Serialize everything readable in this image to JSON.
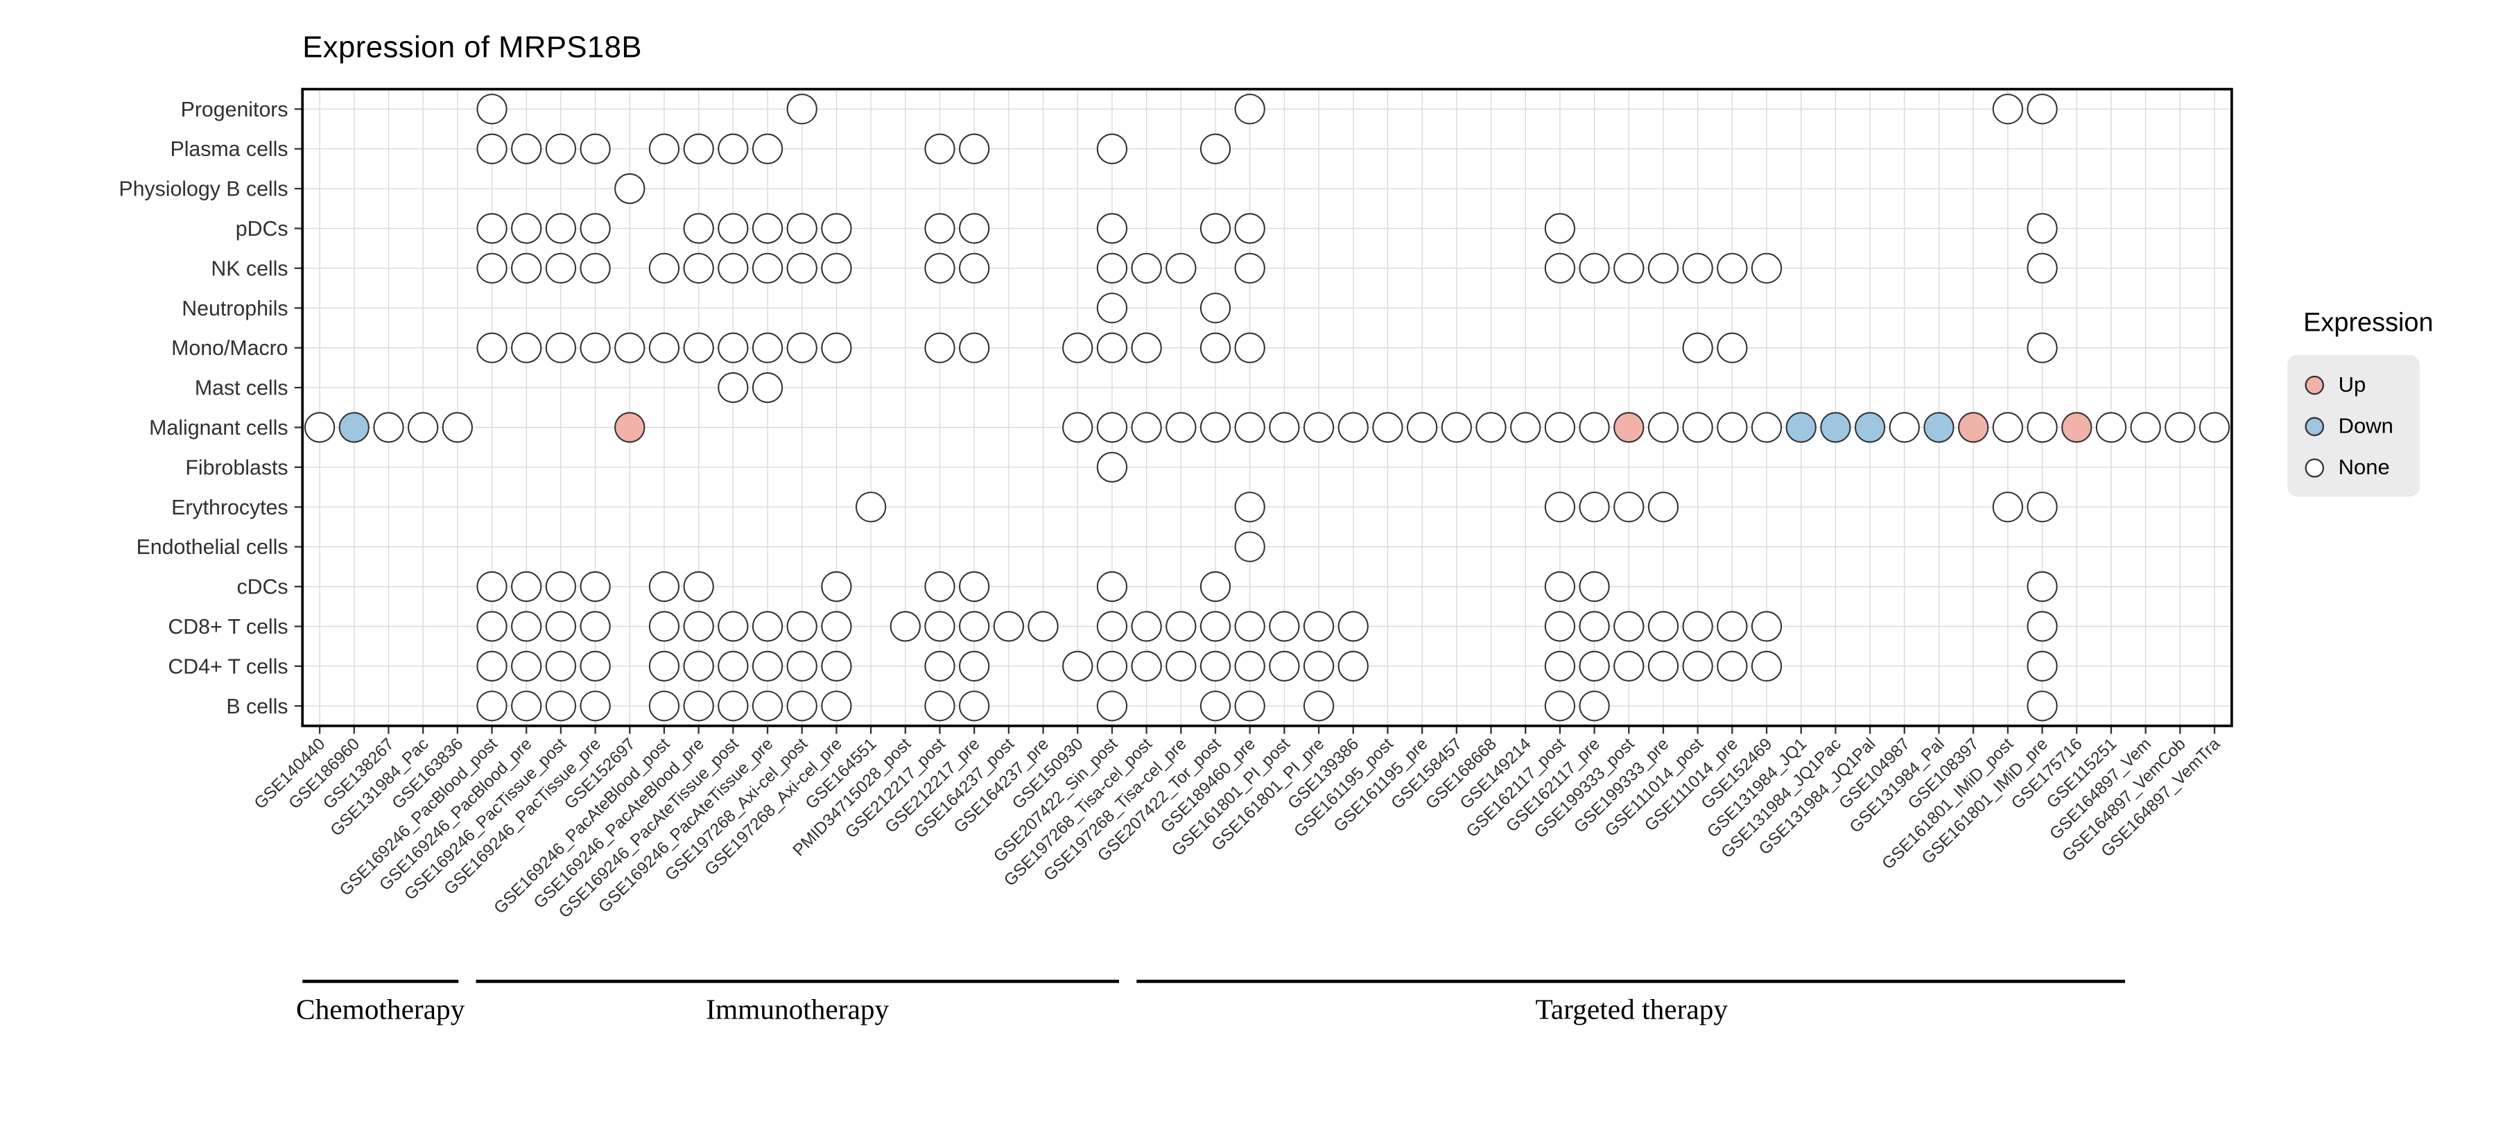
{
  "title": "Expression of MRPS18B",
  "legend": {
    "title": "Expression",
    "items": [
      {
        "label": "Up",
        "status": "u"
      },
      {
        "label": "Down",
        "status": "d"
      },
      {
        "label": "None",
        "status": "n"
      }
    ]
  },
  "chart_data": {
    "type": "heatmap",
    "subtype": "dot-matrix",
    "title": "Expression of MRPS18B",
    "legend_position": "right",
    "grid": true,
    "status_codes": {
      "u": "Up",
      "d": "Down",
      "n": "None"
    },
    "colors": {
      "up": "#F1B2AA",
      "down": "#9FC6E0",
      "none_fill": "#FFFFFF",
      "dot_stroke": "#333333",
      "grid": "#D9D9D9",
      "panel_border": "#000000",
      "tick": "#333333",
      "label": "#303030",
      "legend_box": "#EBEBEB"
    },
    "x_labels": [
      "GSE140440",
      "GSE186960",
      "GSE138267",
      "GSE131984_Pac",
      "GSE163836",
      "GSE169246_PacBlood_post",
      "GSE169246_PacBlood_pre",
      "GSE169246_PacTissue_post",
      "GSE169246_PacTissue_pre",
      "GSE152697",
      "GSE169246_PacAteBlood_post",
      "GSE169246_PacAteBlood_pre",
      "GSE169246_PacAteTissue_post",
      "GSE169246_PacAteTissue_pre",
      "GSE197268_Axi-cel_post",
      "GSE197268_Axi-cel_pre",
      "GSE164551",
      "PMID34715028_post",
      "GSE212217_post",
      "GSE212217_pre",
      "GSE164237_post",
      "GSE164237_pre",
      "GSE150930",
      "GSE207422_Sin_post",
      "GSE197268_Tisa-cel_post",
      "GSE197268_Tisa-cel_pre",
      "GSE207422_Tor_post",
      "GSE189460_pre",
      "GSE161801_PI_post",
      "GSE161801_PI_pre",
      "GSE139386",
      "GSE161195_post",
      "GSE161195_pre",
      "GSE158457",
      "GSE168668",
      "GSE149214",
      "GSE162117_post",
      "GSE162117_pre",
      "GSE199333_post",
      "GSE199333_pre",
      "GSE111014_post",
      "GSE111014_pre",
      "GSE152469",
      "GSE131984_JQ1",
      "GSE131984_JQ1Pac",
      "GSE131984_JQ1Pal",
      "GSE104987",
      "GSE131984_Pal",
      "GSE108397",
      "GSE161801_IMiD_post",
      "GSE161801_IMiD_pre",
      "GSE175716",
      "GSE115251",
      "GSE164897_Vem",
      "GSE164897_VemCob",
      "GSE164897_VemTra"
    ],
    "rows": [
      {
        "label": "Progenitors",
        "dots": [
          [
            5,
            "n"
          ],
          [
            14,
            "n"
          ],
          [
            27,
            "n"
          ],
          [
            49,
            "n"
          ],
          [
            50,
            "n"
          ]
        ]
      },
      {
        "label": "Plasma cells",
        "dots": [
          [
            5,
            "n"
          ],
          [
            6,
            "n"
          ],
          [
            7,
            "n"
          ],
          [
            8,
            "n"
          ],
          [
            10,
            "n"
          ],
          [
            11,
            "n"
          ],
          [
            12,
            "n"
          ],
          [
            13,
            "n"
          ],
          [
            18,
            "n"
          ],
          [
            19,
            "n"
          ],
          [
            23,
            "n"
          ],
          [
            26,
            "n"
          ]
        ]
      },
      {
        "label": "Physiology B cells",
        "dots": [
          [
            9,
            "n"
          ]
        ]
      },
      {
        "label": "pDCs",
        "dots": [
          [
            5,
            "n"
          ],
          [
            6,
            "n"
          ],
          [
            7,
            "n"
          ],
          [
            8,
            "n"
          ],
          [
            11,
            "n"
          ],
          [
            12,
            "n"
          ],
          [
            13,
            "n"
          ],
          [
            14,
            "n"
          ],
          [
            15,
            "n"
          ],
          [
            18,
            "n"
          ],
          [
            19,
            "n"
          ],
          [
            23,
            "n"
          ],
          [
            26,
            "n"
          ],
          [
            27,
            "n"
          ],
          [
            36,
            "n"
          ],
          [
            50,
            "n"
          ]
        ]
      },
      {
        "label": "NK cells",
        "dots": [
          [
            5,
            "n"
          ],
          [
            6,
            "n"
          ],
          [
            7,
            "n"
          ],
          [
            8,
            "n"
          ],
          [
            10,
            "n"
          ],
          [
            11,
            "n"
          ],
          [
            12,
            "n"
          ],
          [
            13,
            "n"
          ],
          [
            14,
            "n"
          ],
          [
            15,
            "n"
          ],
          [
            18,
            "n"
          ],
          [
            19,
            "n"
          ],
          [
            23,
            "n"
          ],
          [
            24,
            "n"
          ],
          [
            25,
            "n"
          ],
          [
            27,
            "n"
          ],
          [
            36,
            "n"
          ],
          [
            37,
            "n"
          ],
          [
            38,
            "n"
          ],
          [
            39,
            "n"
          ],
          [
            40,
            "n"
          ],
          [
            41,
            "n"
          ],
          [
            42,
            "n"
          ],
          [
            50,
            "n"
          ]
        ]
      },
      {
        "label": "Neutrophils",
        "dots": [
          [
            23,
            "n"
          ],
          [
            26,
            "n"
          ]
        ]
      },
      {
        "label": "Mono/Macro",
        "dots": [
          [
            5,
            "n"
          ],
          [
            6,
            "n"
          ],
          [
            7,
            "n"
          ],
          [
            8,
            "n"
          ],
          [
            9,
            "n"
          ],
          [
            10,
            "n"
          ],
          [
            11,
            "n"
          ],
          [
            12,
            "n"
          ],
          [
            13,
            "n"
          ],
          [
            14,
            "n"
          ],
          [
            15,
            "n"
          ],
          [
            18,
            "n"
          ],
          [
            19,
            "n"
          ],
          [
            22,
            "n"
          ],
          [
            23,
            "n"
          ],
          [
            24,
            "n"
          ],
          [
            26,
            "n"
          ],
          [
            27,
            "n"
          ],
          [
            40,
            "n"
          ],
          [
            41,
            "n"
          ],
          [
            50,
            "n"
          ]
        ]
      },
      {
        "label": "Mast cells",
        "dots": [
          [
            12,
            "n"
          ],
          [
            13,
            "n"
          ]
        ]
      },
      {
        "label": "Malignant cells",
        "dots": [
          [
            0,
            "n"
          ],
          [
            1,
            "d"
          ],
          [
            2,
            "n"
          ],
          [
            3,
            "n"
          ],
          [
            4,
            "n"
          ],
          [
            9,
            "u"
          ],
          [
            22,
            "n"
          ],
          [
            23,
            "n"
          ],
          [
            24,
            "n"
          ],
          [
            25,
            "n"
          ],
          [
            26,
            "n"
          ],
          [
            27,
            "n"
          ],
          [
            28,
            "n"
          ],
          [
            29,
            "n"
          ],
          [
            30,
            "n"
          ],
          [
            31,
            "n"
          ],
          [
            32,
            "n"
          ],
          [
            33,
            "n"
          ],
          [
            34,
            "n"
          ],
          [
            35,
            "n"
          ],
          [
            36,
            "n"
          ],
          [
            37,
            "n"
          ],
          [
            38,
            "u"
          ],
          [
            39,
            "n"
          ],
          [
            40,
            "n"
          ],
          [
            41,
            "n"
          ],
          [
            42,
            "n"
          ],
          [
            43,
            "d"
          ],
          [
            44,
            "d"
          ],
          [
            45,
            "d"
          ],
          [
            46,
            "n"
          ],
          [
            47,
            "d"
          ],
          [
            48,
            "u"
          ],
          [
            49,
            "n"
          ],
          [
            50,
            "n"
          ],
          [
            51,
            "u"
          ],
          [
            52,
            "n"
          ],
          [
            53,
            "n"
          ],
          [
            54,
            "n"
          ],
          [
            55,
            "n"
          ]
        ]
      },
      {
        "label": "Fibroblasts",
        "dots": [
          [
            23,
            "n"
          ]
        ]
      },
      {
        "label": "Erythrocytes",
        "dots": [
          [
            16,
            "n"
          ],
          [
            27,
            "n"
          ],
          [
            36,
            "n"
          ],
          [
            37,
            "n"
          ],
          [
            38,
            "n"
          ],
          [
            39,
            "n"
          ],
          [
            49,
            "n"
          ],
          [
            50,
            "n"
          ]
        ]
      },
      {
        "label": "Endothelial cells",
        "dots": [
          [
            27,
            "n"
          ]
        ]
      },
      {
        "label": "cDCs",
        "dots": [
          [
            5,
            "n"
          ],
          [
            6,
            "n"
          ],
          [
            7,
            "n"
          ],
          [
            8,
            "n"
          ],
          [
            10,
            "n"
          ],
          [
            11,
            "n"
          ],
          [
            15,
            "n"
          ],
          [
            18,
            "n"
          ],
          [
            19,
            "n"
          ],
          [
            23,
            "n"
          ],
          [
            26,
            "n"
          ],
          [
            36,
            "n"
          ],
          [
            37,
            "n"
          ],
          [
            50,
            "n"
          ]
        ]
      },
      {
        "label": "CD8+ T cells",
        "dots": [
          [
            5,
            "n"
          ],
          [
            6,
            "n"
          ],
          [
            7,
            "n"
          ],
          [
            8,
            "n"
          ],
          [
            10,
            "n"
          ],
          [
            11,
            "n"
          ],
          [
            12,
            "n"
          ],
          [
            13,
            "n"
          ],
          [
            14,
            "n"
          ],
          [
            15,
            "n"
          ],
          [
            17,
            "n"
          ],
          [
            18,
            "n"
          ],
          [
            19,
            "n"
          ],
          [
            20,
            "n"
          ],
          [
            21,
            "n"
          ],
          [
            23,
            "n"
          ],
          [
            24,
            "n"
          ],
          [
            25,
            "n"
          ],
          [
            26,
            "n"
          ],
          [
            27,
            "n"
          ],
          [
            28,
            "n"
          ],
          [
            29,
            "n"
          ],
          [
            30,
            "n"
          ],
          [
            36,
            "n"
          ],
          [
            37,
            "n"
          ],
          [
            38,
            "n"
          ],
          [
            39,
            "n"
          ],
          [
            40,
            "n"
          ],
          [
            41,
            "n"
          ],
          [
            42,
            "n"
          ],
          [
            50,
            "n"
          ]
        ]
      },
      {
        "label": "CD4+ T cells",
        "dots": [
          [
            5,
            "n"
          ],
          [
            6,
            "n"
          ],
          [
            7,
            "n"
          ],
          [
            8,
            "n"
          ],
          [
            10,
            "n"
          ],
          [
            11,
            "n"
          ],
          [
            12,
            "n"
          ],
          [
            13,
            "n"
          ],
          [
            14,
            "n"
          ],
          [
            15,
            "n"
          ],
          [
            18,
            "n"
          ],
          [
            19,
            "n"
          ],
          [
            22,
            "n"
          ],
          [
            23,
            "n"
          ],
          [
            24,
            "n"
          ],
          [
            25,
            "n"
          ],
          [
            26,
            "n"
          ],
          [
            27,
            "n"
          ],
          [
            28,
            "n"
          ],
          [
            29,
            "n"
          ],
          [
            30,
            "n"
          ],
          [
            36,
            "n"
          ],
          [
            37,
            "n"
          ],
          [
            38,
            "n"
          ],
          [
            39,
            "n"
          ],
          [
            40,
            "n"
          ],
          [
            41,
            "n"
          ],
          [
            42,
            "n"
          ],
          [
            50,
            "n"
          ]
        ]
      },
      {
        "label": "B cells",
        "dots": [
          [
            5,
            "n"
          ],
          [
            6,
            "n"
          ],
          [
            7,
            "n"
          ],
          [
            8,
            "n"
          ],
          [
            10,
            "n"
          ],
          [
            11,
            "n"
          ],
          [
            12,
            "n"
          ],
          [
            13,
            "n"
          ],
          [
            14,
            "n"
          ],
          [
            15,
            "n"
          ],
          [
            18,
            "n"
          ],
          [
            19,
            "n"
          ],
          [
            23,
            "n"
          ],
          [
            26,
            "n"
          ],
          [
            27,
            "n"
          ],
          [
            29,
            "n"
          ],
          [
            36,
            "n"
          ],
          [
            37,
            "n"
          ],
          [
            50,
            "n"
          ]
        ]
      }
    ],
    "groups": [
      {
        "label": "Chemotherapy",
        "col_start": 0,
        "col_end": 4
      },
      {
        "label": "Immunotherapy",
        "col_start": 5,
        "col_end": 23
      },
      {
        "label": "Targeted therapy",
        "col_start": 24,
        "col_end": 55
      }
    ]
  }
}
